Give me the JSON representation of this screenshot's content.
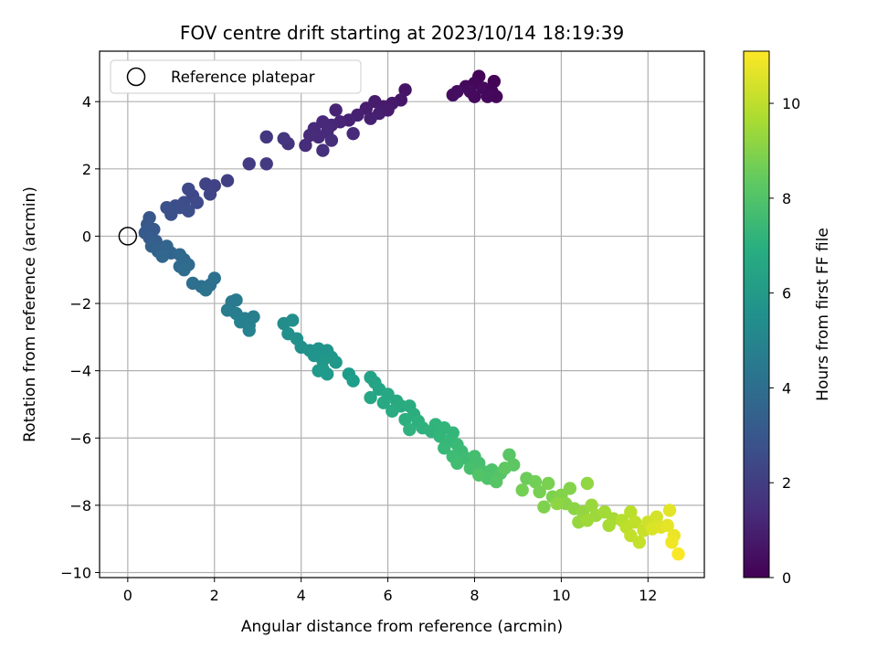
{
  "chart_data": {
    "type": "scatter",
    "title": "FOV centre drift starting at 2023/10/14 18:19:39",
    "xlabel": "Angular distance from reference (arcmin)",
    "ylabel": "Rotation from reference (arcmin)",
    "xlim": [
      -0.65,
      13.3
    ],
    "ylim": [
      -10.15,
      5.5
    ],
    "xticks": [
      0,
      2,
      4,
      6,
      8,
      10,
      12
    ],
    "yticks": [
      -10,
      -8,
      -6,
      -4,
      -2,
      0,
      2,
      4
    ],
    "grid": true,
    "legend": {
      "position": "top-left",
      "entries": [
        "Reference platepar"
      ]
    },
    "colorbar": {
      "label": "Hours from first FF file",
      "range": [
        0,
        11.1
      ],
      "ticks": [
        0,
        2,
        4,
        6,
        8,
        10
      ],
      "colormap": "viridis"
    },
    "reference_point": {
      "x": 0,
      "y": 0
    },
    "points": [
      [
        8.1,
        4.75,
        0.05
      ],
      [
        8.45,
        4.6,
        0.1
      ],
      [
        8.0,
        4.55,
        0.2
      ],
      [
        7.8,
        4.45,
        0.25
      ],
      [
        8.2,
        4.4,
        0.3
      ],
      [
        7.9,
        4.3,
        0.35
      ],
      [
        8.4,
        4.3,
        0.15
      ],
      [
        8.3,
        4.15,
        0.25
      ],
      [
        7.6,
        4.3,
        0.4
      ],
      [
        7.5,
        4.2,
        0.45
      ],
      [
        8.0,
        4.15,
        0.3
      ],
      [
        8.5,
        4.15,
        0.2
      ],
      [
        6.4,
        4.35,
        0.6
      ],
      [
        6.3,
        4.05,
        0.7
      ],
      [
        6.1,
        3.95,
        0.75
      ],
      [
        5.9,
        3.85,
        0.8
      ],
      [
        5.7,
        4.0,
        0.85
      ],
      [
        5.5,
        3.8,
        0.9
      ],
      [
        5.8,
        3.65,
        0.95
      ],
      [
        5.3,
        3.6,
        1.0
      ],
      [
        5.1,
        3.45,
        1.05
      ],
      [
        5.6,
        3.5,
        1.0
      ],
      [
        4.8,
        3.75,
        1.1
      ],
      [
        4.9,
        3.4,
        1.15
      ],
      [
        4.7,
        3.3,
        1.2
      ],
      [
        4.5,
        3.4,
        1.25
      ],
      [
        4.3,
        3.2,
        1.3
      ],
      [
        4.6,
        3.1,
        1.3
      ],
      [
        4.4,
        2.95,
        1.35
      ],
      [
        4.2,
        3.0,
        1.4
      ],
      [
        4.1,
        2.7,
        1.45
      ],
      [
        4.5,
        2.55,
        1.5
      ],
      [
        4.7,
        2.85,
        1.45
      ],
      [
        5.2,
        3.05,
        1.35
      ],
      [
        6.0,
        3.75,
        0.85
      ],
      [
        3.7,
        2.75,
        1.7
      ],
      [
        3.6,
        2.9,
        1.75
      ],
      [
        3.2,
        2.95,
        1.8
      ],
      [
        2.8,
        2.15,
        1.95
      ],
      [
        3.2,
        2.15,
        1.9
      ],
      [
        2.3,
        1.65,
        2.1
      ],
      [
        2.0,
        1.5,
        2.2
      ],
      [
        1.8,
        1.55,
        2.25
      ],
      [
        1.9,
        1.25,
        2.3
      ],
      [
        1.5,
        1.2,
        2.4
      ],
      [
        1.4,
        1.4,
        2.45
      ],
      [
        1.6,
        1.0,
        2.5
      ],
      [
        1.3,
        1.0,
        2.6
      ],
      [
        1.1,
        0.9,
        2.65
      ],
      [
        1.4,
        0.75,
        2.7
      ],
      [
        1.0,
        0.65,
        2.75
      ],
      [
        0.9,
        0.85,
        2.8
      ],
      [
        1.2,
        0.85,
        2.7
      ],
      [
        0.5,
        0.55,
        3.0
      ],
      [
        0.45,
        0.35,
        3.05
      ],
      [
        0.6,
        0.2,
        3.1
      ],
      [
        0.4,
        0.1,
        3.15
      ],
      [
        0.5,
        -0.05,
        3.2
      ],
      [
        0.65,
        -0.15,
        3.3
      ],
      [
        0.55,
        -0.3,
        3.4
      ],
      [
        0.7,
        -0.45,
        3.5
      ],
      [
        0.9,
        -0.3,
        3.55
      ],
      [
        1.0,
        -0.5,
        3.6
      ],
      [
        0.8,
        -0.6,
        3.65
      ],
      [
        1.2,
        -0.55,
        3.7
      ],
      [
        1.3,
        -0.7,
        3.75
      ],
      [
        1.2,
        -0.9,
        3.8
      ],
      [
        1.4,
        -0.85,
        3.85
      ],
      [
        1.3,
        -1.0,
        3.9
      ],
      [
        1.5,
        -1.4,
        4.0
      ],
      [
        1.7,
        -1.5,
        4.05
      ],
      [
        1.9,
        -1.45,
        4.1
      ],
      [
        2.0,
        -1.25,
        4.15
      ],
      [
        1.8,
        -1.6,
        4.2
      ],
      [
        2.4,
        -1.95,
        4.5
      ],
      [
        2.5,
        -1.9,
        4.55
      ],
      [
        2.3,
        -2.2,
        4.6
      ],
      [
        2.5,
        -2.3,
        4.7
      ],
      [
        2.7,
        -2.45,
        4.75
      ],
      [
        2.9,
        -2.4,
        4.8
      ],
      [
        2.8,
        -2.65,
        4.85
      ],
      [
        2.6,
        -2.55,
        4.9
      ],
      [
        2.8,
        -2.8,
        4.95
      ],
      [
        3.6,
        -2.6,
        5.4
      ],
      [
        3.8,
        -2.5,
        5.45
      ],
      [
        3.7,
        -2.9,
        5.5
      ],
      [
        3.9,
        -3.05,
        5.55
      ],
      [
        4.0,
        -3.3,
        5.6
      ],
      [
        4.2,
        -3.4,
        5.65
      ],
      [
        4.4,
        -3.35,
        5.7
      ],
      [
        4.6,
        -3.4,
        5.75
      ],
      [
        4.7,
        -3.6,
        5.8
      ],
      [
        4.5,
        -3.7,
        5.85
      ],
      [
        4.3,
        -3.55,
        5.75
      ],
      [
        4.8,
        -3.75,
        5.9
      ],
      [
        4.5,
        -3.95,
        5.95
      ],
      [
        4.6,
        -4.1,
        6.0
      ],
      [
        5.1,
        -4.1,
        6.1
      ],
      [
        5.2,
        -4.3,
        6.15
      ],
      [
        4.4,
        -4.0,
        6.0
      ],
      [
        5.6,
        -4.2,
        6.4
      ],
      [
        5.7,
        -4.35,
        6.45
      ],
      [
        5.8,
        -4.55,
        6.5
      ],
      [
        5.6,
        -4.8,
        6.55
      ],
      [
        6.0,
        -4.7,
        6.6
      ],
      [
        5.9,
        -4.95,
        6.65
      ],
      [
        6.2,
        -4.9,
        6.7
      ],
      [
        6.3,
        -5.05,
        6.75
      ],
      [
        6.1,
        -5.2,
        6.8
      ],
      [
        6.5,
        -5.05,
        6.85
      ],
      [
        6.6,
        -5.3,
        6.9
      ],
      [
        6.4,
        -5.45,
        6.95
      ],
      [
        6.7,
        -5.5,
        7.0
      ],
      [
        6.8,
        -5.7,
        7.05
      ],
      [
        6.5,
        -5.75,
        7.1
      ],
      [
        7.0,
        -5.8,
        7.15
      ],
      [
        7.1,
        -5.6,
        7.2
      ],
      [
        7.3,
        -5.7,
        7.25
      ],
      [
        7.2,
        -5.95,
        7.3
      ],
      [
        7.5,
        -5.85,
        7.35
      ],
      [
        7.4,
        -6.1,
        7.4
      ],
      [
        7.3,
        -6.3,
        7.45
      ],
      [
        7.6,
        -6.2,
        7.5
      ],
      [
        7.7,
        -6.4,
        7.55
      ],
      [
        7.5,
        -6.55,
        7.6
      ],
      [
        7.8,
        -6.6,
        7.65
      ],
      [
        7.6,
        -6.75,
        7.7
      ],
      [
        8.0,
        -6.55,
        7.75
      ],
      [
        8.1,
        -6.75,
        7.8
      ],
      [
        7.9,
        -6.9,
        7.85
      ],
      [
        8.2,
        -7.0,
        7.9
      ],
      [
        8.4,
        -6.95,
        7.95
      ],
      [
        8.3,
        -7.2,
        8.0
      ],
      [
        8.1,
        -7.1,
        8.05
      ],
      [
        8.6,
        -7.05,
        8.1
      ],
      [
        8.5,
        -7.3,
        8.15
      ],
      [
        8.8,
        -6.5,
        8.2
      ],
      [
        8.9,
        -6.8,
        8.25
      ],
      [
        8.7,
        -6.9,
        8.3
      ],
      [
        9.2,
        -7.2,
        8.6
      ],
      [
        9.4,
        -7.3,
        8.7
      ],
      [
        9.1,
        -7.55,
        8.75
      ],
      [
        9.5,
        -7.6,
        8.8
      ],
      [
        9.7,
        -7.35,
        8.85
      ],
      [
        9.8,
        -7.75,
        8.9
      ],
      [
        9.6,
        -8.05,
        8.95
      ],
      [
        10.0,
        -7.7,
        9.0
      ],
      [
        10.2,
        -7.5,
        9.05
      ],
      [
        10.1,
        -7.95,
        9.1
      ],
      [
        10.3,
        -8.1,
        9.15
      ],
      [
        9.9,
        -7.95,
        9.2
      ],
      [
        10.6,
        -7.35,
        9.25
      ],
      [
        10.5,
        -8.2,
        9.3
      ],
      [
        10.4,
        -8.5,
        9.35
      ],
      [
        10.7,
        -8.0,
        9.4
      ],
      [
        10.8,
        -8.3,
        9.45
      ],
      [
        10.6,
        -8.45,
        9.5
      ],
      [
        11.0,
        -8.2,
        9.55
      ],
      [
        11.2,
        -8.4,
        9.6
      ],
      [
        11.1,
        -8.6,
        9.65
      ],
      [
        11.4,
        -8.45,
        9.9
      ],
      [
        11.6,
        -8.2,
        9.95
      ],
      [
        11.5,
        -8.65,
        10.0
      ],
      [
        11.7,
        -8.5,
        10.05
      ],
      [
        11.6,
        -8.9,
        10.1
      ],
      [
        11.8,
        -9.1,
        10.15
      ],
      [
        11.9,
        -8.75,
        10.2
      ],
      [
        12.0,
        -8.5,
        10.3
      ],
      [
        12.2,
        -8.35,
        10.4
      ],
      [
        12.1,
        -8.7,
        10.5
      ],
      [
        12.3,
        -8.65,
        10.6
      ],
      [
        12.5,
        -8.15,
        10.65
      ],
      [
        12.45,
        -8.6,
        10.7
      ],
      [
        12.6,
        -8.9,
        10.8
      ],
      [
        12.55,
        -9.1,
        10.9
      ],
      [
        12.7,
        -9.45,
        11.05
      ]
    ]
  }
}
